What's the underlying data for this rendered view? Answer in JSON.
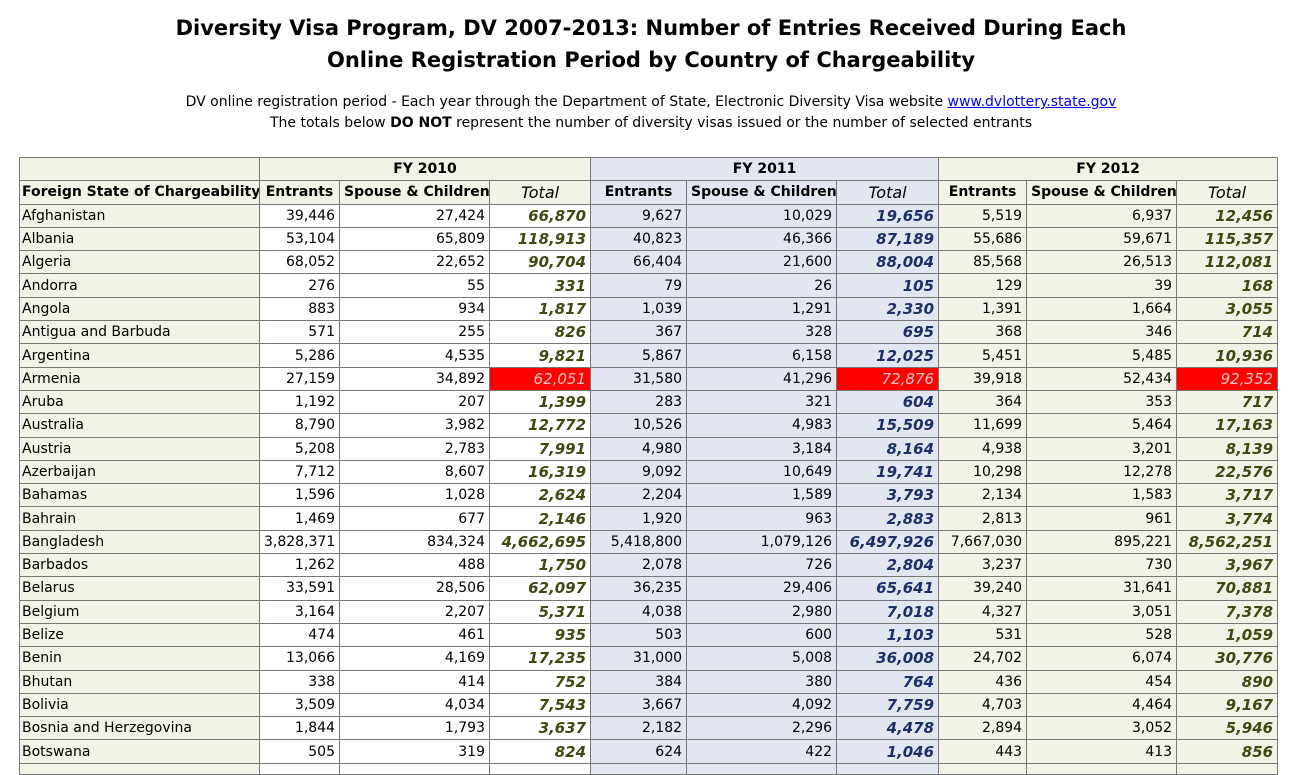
{
  "header": {
    "title_line1": "Diversity Visa Program, DV 2007-2013: Number of Entries Received During Each",
    "title_line2": "Online Registration Period by Country of Chargeability",
    "subtitle1_prefix": "DV online registration period - Each year through the Department of State, Electronic Diversity Visa website ",
    "subtitle1_link": "www.dvlottery.state.gov",
    "subtitle2_pre": "The totals below ",
    "subtitle2_bold": "DO NOT",
    "subtitle2_post": " represent the number of diversity visas issued or the number of selected entrants"
  },
  "table": {
    "group_headers": [
      "FY 2010",
      "FY 2011",
      "FY 2012"
    ],
    "column_headers": [
      "Foreign State of Chargeability",
      "Entrants",
      "Spouse & Children",
      "Total",
      "Entrants",
      "Spouse & Children",
      "Total",
      "Entrants",
      "Spouse & Children",
      "Total"
    ],
    "rows": [
      [
        "Afghanistan",
        "39,446",
        "27,424",
        "66,870",
        "9,627",
        "10,029",
        "19,656",
        "5,519",
        "6,937",
        "12,456"
      ],
      [
        "Albania",
        "53,104",
        "65,809",
        "118,913",
        "40,823",
        "46,366",
        "87,189",
        "55,686",
        "59,671",
        "115,357"
      ],
      [
        "Algeria",
        "68,052",
        "22,652",
        "90,704",
        "66,404",
        "21,600",
        "88,004",
        "85,568",
        "26,513",
        "112,081"
      ],
      [
        "Andorra",
        "276",
        "55",
        "331",
        "79",
        "26",
        "105",
        "129",
        "39",
        "168"
      ],
      [
        "Angola",
        "883",
        "934",
        "1,817",
        "1,039",
        "1,291",
        "2,330",
        "1,391",
        "1,664",
        "3,055"
      ],
      [
        "Antigua and Barbuda",
        "571",
        "255",
        "826",
        "367",
        "328",
        "695",
        "368",
        "346",
        "714"
      ],
      [
        "Argentina",
        "5,286",
        "4,535",
        "9,821",
        "5,867",
        "6,158",
        "12,025",
        "5,451",
        "5,485",
        "10,936"
      ],
      [
        "Armenia",
        "27,159",
        "34,892",
        "62,051",
        "31,580",
        "41,296",
        "72,876",
        "39,918",
        "52,434",
        "92,352"
      ],
      [
        "Aruba",
        "1,192",
        "207",
        "1,399",
        "283",
        "321",
        "604",
        "364",
        "353",
        "717"
      ],
      [
        "Australia",
        "8,790",
        "3,982",
        "12,772",
        "10,526",
        "4,983",
        "15,509",
        "11,699",
        "5,464",
        "17,163"
      ],
      [
        "Austria",
        "5,208",
        "2,783",
        "7,991",
        "4,980",
        "3,184",
        "8,164",
        "4,938",
        "3,201",
        "8,139"
      ],
      [
        "Azerbaijan",
        "7,712",
        "8,607",
        "16,319",
        "9,092",
        "10,649",
        "19,741",
        "10,298",
        "12,278",
        "22,576"
      ],
      [
        "Bahamas",
        "1,596",
        "1,028",
        "2,624",
        "2,204",
        "1,589",
        "3,793",
        "2,134",
        "1,583",
        "3,717"
      ],
      [
        "Bahrain",
        "1,469",
        "677",
        "2,146",
        "1,920",
        "963",
        "2,883",
        "2,813",
        "961",
        "3,774"
      ],
      [
        "Bangladesh",
        "3,828,371",
        "834,324",
        "4,662,695",
        "5,418,800",
        "1,079,126",
        "6,497,926",
        "7,667,030",
        "895,221",
        "8,562,251"
      ],
      [
        "Barbados",
        "1,262",
        "488",
        "1,750",
        "2,078",
        "726",
        "2,804",
        "3,237",
        "730",
        "3,967"
      ],
      [
        "Belarus",
        "33,591",
        "28,506",
        "62,097",
        "36,235",
        "29,406",
        "65,641",
        "39,240",
        "31,641",
        "70,881"
      ],
      [
        "Belgium",
        "3,164",
        "2,207",
        "5,371",
        "4,038",
        "2,980",
        "7,018",
        "4,327",
        "3,051",
        "7,378"
      ],
      [
        "Belize",
        "474",
        "461",
        "935",
        "503",
        "600",
        "1,103",
        "531",
        "528",
        "1,059"
      ],
      [
        "Benin",
        "13,066",
        "4,169",
        "17,235",
        "31,000",
        "5,008",
        "36,008",
        "24,702",
        "6,074",
        "30,776"
      ],
      [
        "Bhutan",
        "338",
        "414",
        "752",
        "384",
        "380",
        "764",
        "436",
        "454",
        "890"
      ],
      [
        "Bolivia",
        "3,509",
        "4,034",
        "7,543",
        "3,667",
        "4,092",
        "7,759",
        "4,703",
        "4,464",
        "9,167"
      ],
      [
        "Bosnia and Herzegovina",
        "1,844",
        "1,793",
        "3,637",
        "2,182",
        "2,296",
        "4,478",
        "2,894",
        "3,052",
        "5,946"
      ],
      [
        "Botswana",
        "505",
        "319",
        "824",
        "624",
        "422",
        "1,046",
        "443",
        "413",
        "856"
      ]
    ],
    "highlighted_row": "Armenia",
    "highlight_color": "#ff0000"
  }
}
